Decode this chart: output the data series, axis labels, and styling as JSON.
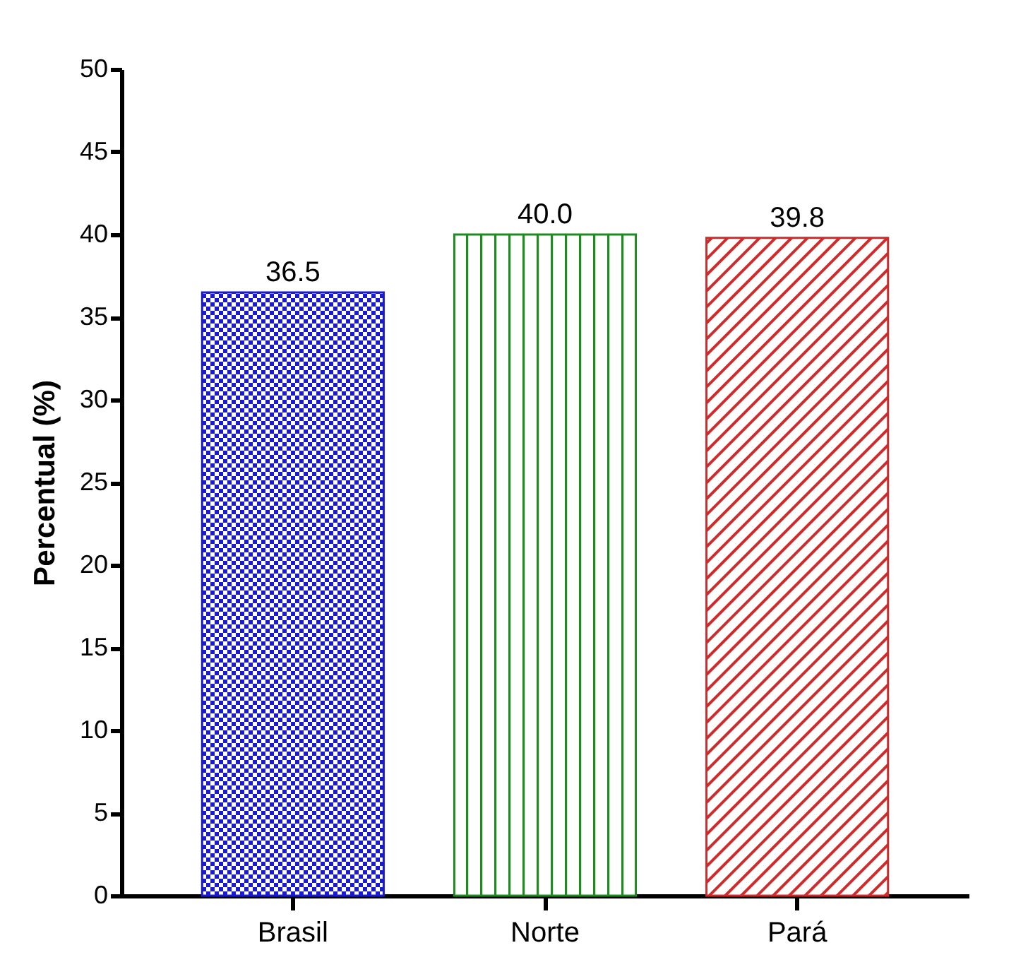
{
  "chart_data": {
    "type": "bar",
    "ylabel": "Percentual (%)",
    "categories": [
      "Brasil",
      "Norte",
      "Pará"
    ],
    "values": [
      36.5,
      40.0,
      39.8
    ],
    "colors": [
      "#1a1ad0",
      "#1f8a1f",
      "#d02a2a"
    ],
    "value_labels": [
      "36.5",
      "40.0",
      "39.8"
    ],
    "ylim": [
      0,
      50
    ],
    "yticks": [
      0,
      5,
      10,
      15,
      20,
      25,
      30,
      35,
      40,
      45,
      50
    ],
    "grid": false
  }
}
